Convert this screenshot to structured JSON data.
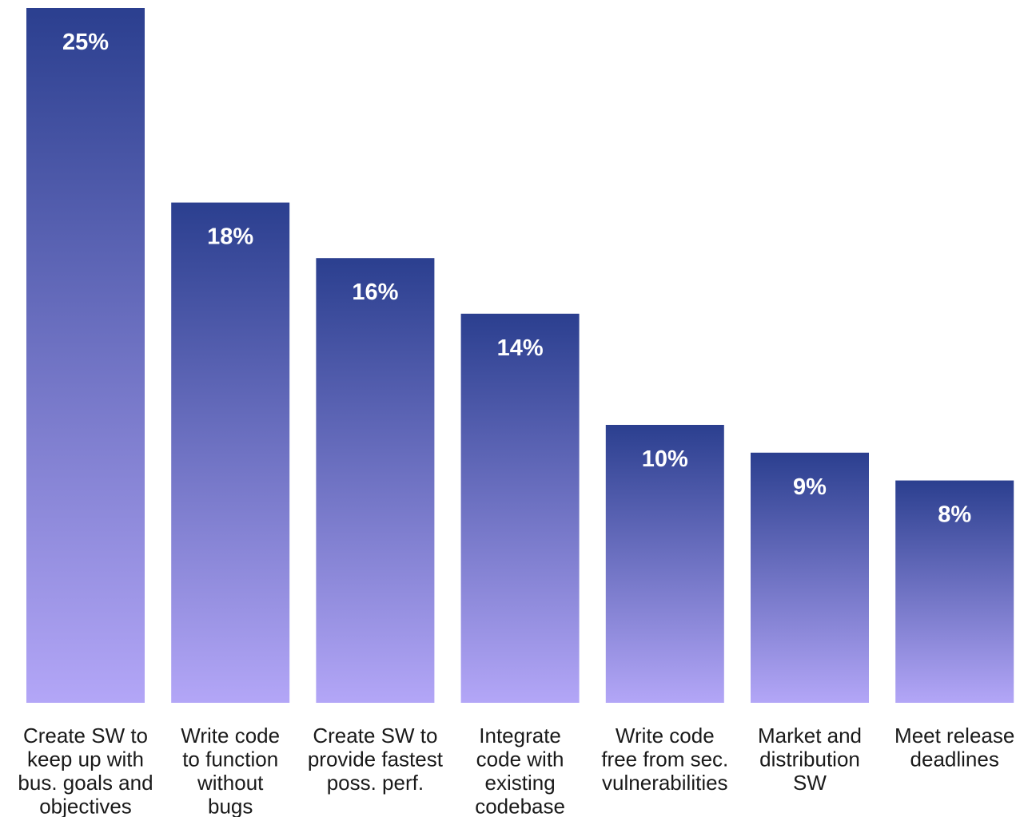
{
  "chart_data": {
    "type": "bar",
    "title": "",
    "xlabel": "",
    "ylabel": "",
    "ylim": [
      0,
      25
    ],
    "grid": false,
    "categories": [
      "Create SW to keep up with bus. goals and objectives",
      "Write code to function without bugs",
      "Create SW to provide fastest poss. perf.",
      "Integrate code with existing codebase",
      "Write code free from sec. vulnerabilities",
      "Market and distribution SW",
      "Meet release deadlines"
    ],
    "category_label_lines": [
      [
        "Create SW to",
        "keep up with",
        "bus. goals and",
        "objectives"
      ],
      [
        "Write code",
        "to function",
        "without",
        "bugs"
      ],
      [
        "Create SW to",
        "provide fastest",
        "poss. perf."
      ],
      [
        "Integrate",
        "code with",
        "existing",
        "codebase"
      ],
      [
        "Write code",
        "free from sec.",
        "vulnerabilities"
      ],
      [
        "Market and",
        "distribution",
        "SW"
      ],
      [
        "Meet release",
        "deadlines"
      ]
    ],
    "values": [
      25,
      18,
      16,
      14,
      10,
      9,
      8
    ],
    "data_labels": [
      "25%",
      "18%",
      "16%",
      "14%",
      "10%",
      "9%",
      "8%"
    ],
    "colors": {
      "bar_top": "#2b3f8f",
      "bar_bottom": "#b3a6f7"
    }
  }
}
